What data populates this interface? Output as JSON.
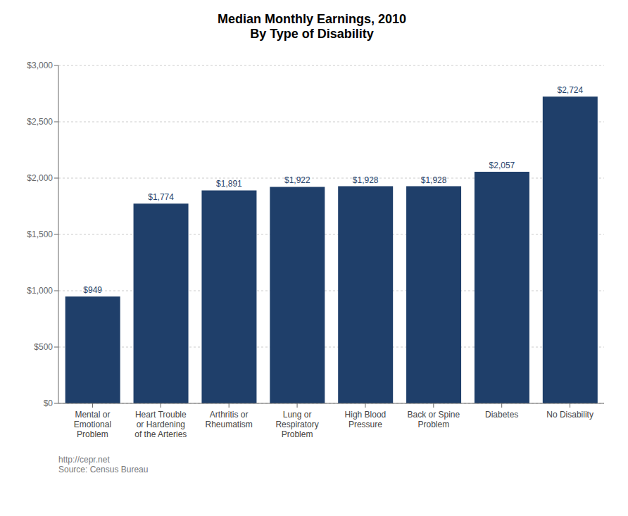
{
  "chart_data": {
    "type": "bar",
    "title": "Median Monthly Earnings, 2010\nBy Type of Disability",
    "categories": [
      "Mental or\nEmotional\nProblem",
      "Heart Trouble\nor Hardening\nof the Arteries",
      "Arthritis or\nRheumatism",
      "Lung or\nRespiratory\nProblem",
      "High Blood\nPressure",
      "Back or Spine\nProblem",
      "Diabetes",
      "No Disability"
    ],
    "values": [
      949,
      1774,
      1891,
      1922,
      1928,
      1928,
      2057,
      2724
    ],
    "value_labels": [
      "$949",
      "$1,774",
      "$1,891",
      "$1,922",
      "$1,928",
      "$1,928",
      "$2,057",
      "$2,724"
    ],
    "data_labels": true,
    "color": "#1F3F6A",
    "ylim": [
      0,
      3000
    ],
    "yticks": [
      {
        "value": 0,
        "label": "$0"
      },
      {
        "value": 500,
        "label": "$500"
      },
      {
        "value": 1000,
        "label": "$1,000"
      },
      {
        "value": 1500,
        "label": "$1,500"
      },
      {
        "value": 2000,
        "label": "$2,000"
      },
      {
        "value": 2500,
        "label": "$2,500"
      },
      {
        "value": 3000,
        "label": "$3,000"
      }
    ],
    "grid": true,
    "annotations": [
      "http://cepr.net\nSource: Census Bureau"
    ]
  }
}
